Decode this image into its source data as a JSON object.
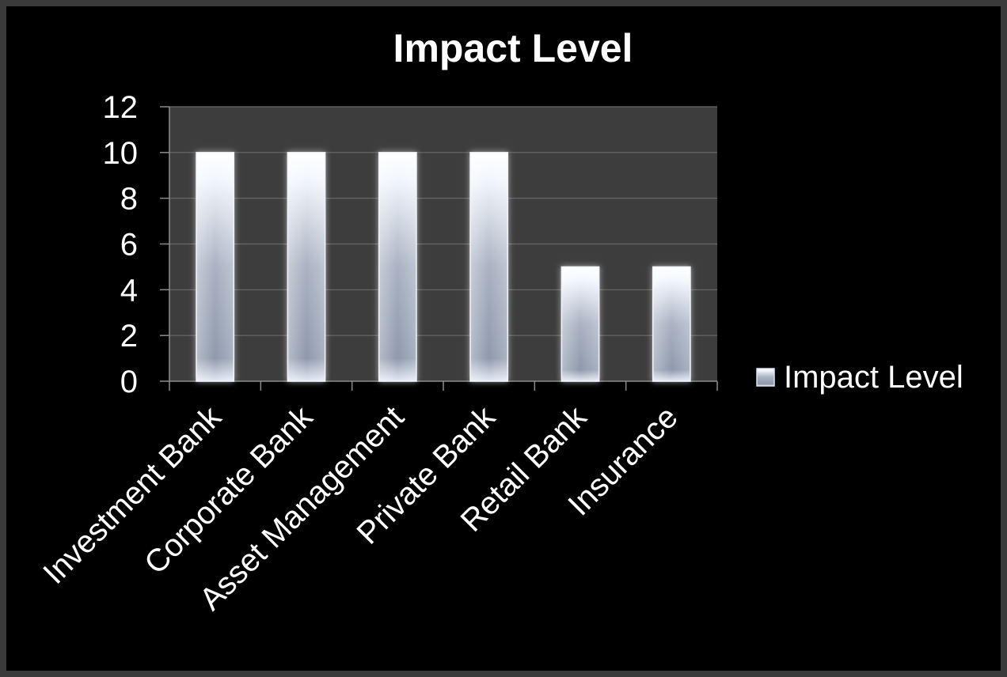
{
  "chart_data": {
    "type": "bar",
    "title": "Impact Level",
    "xlabel": "",
    "ylabel": "",
    "categories": [
      "Investment Bank",
      "Corporate Bank",
      "Asset Management",
      "Private Bank",
      "Retail Bank",
      "Insurance"
    ],
    "series": [
      {
        "name": "Impact Level",
        "values": [
          10,
          10,
          10,
          10,
          5,
          5
        ]
      }
    ],
    "ylim": [
      0,
      12
    ],
    "yticks": [
      "0",
      "2",
      "4",
      "6",
      "8",
      "10",
      "12"
    ],
    "grid": true,
    "legend_position": "right",
    "colors": {
      "page_background": "#3a3a3a",
      "chart_background": "#000000",
      "plot_background": "#3d3d3d",
      "gridline": "#6a6a6a",
      "bar_light": "#ffffff",
      "bar_mid": "#8a95a8",
      "text": "#ffffff"
    }
  }
}
